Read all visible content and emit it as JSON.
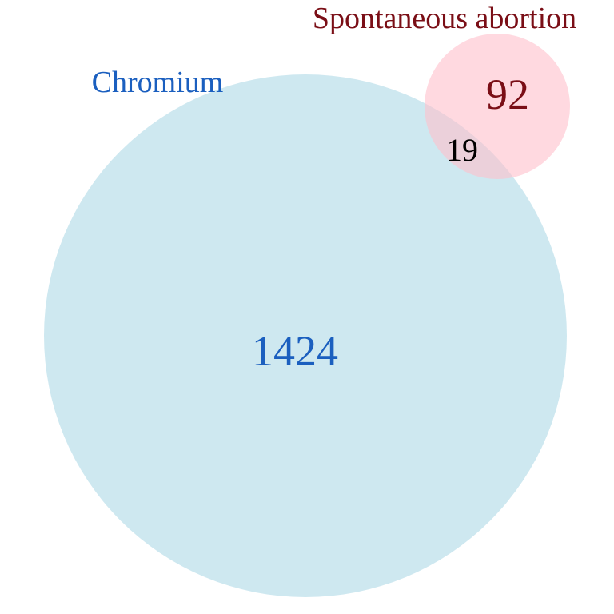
{
  "venn": {
    "sets": [
      {
        "label": "Chromium",
        "only_count": "1424",
        "fill_color": "#add8e6",
        "label_color": "#1b5fbf"
      },
      {
        "label": "Spontaneous abortion",
        "only_count": "92",
        "fill_color": "#ffc0cb",
        "label_color": "#7a0e16"
      }
    ],
    "intersection_count": "19",
    "intersection_color": "#000000"
  }
}
